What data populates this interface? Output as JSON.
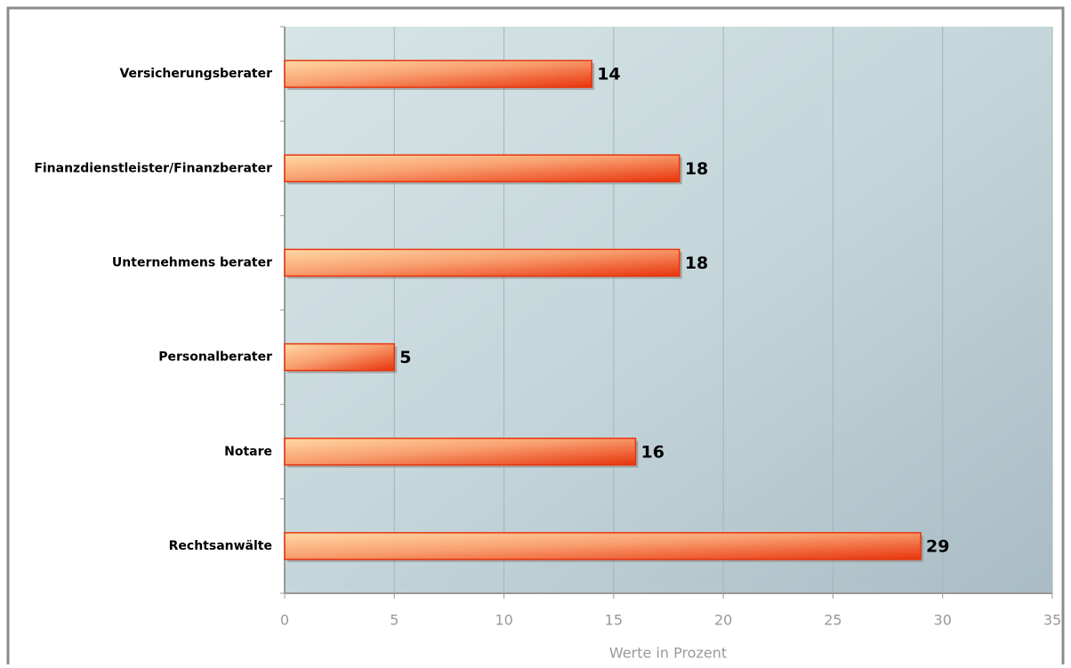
{
  "chart_data": {
    "type": "hbar",
    "categories": [
      "Versicherungsberater",
      "Finanzdienstleister/Finanzberater",
      "Unternehmens berater",
      "Personalberater",
      "Notare",
      "Rechtsanwälte"
    ],
    "values": [
      14,
      18,
      18,
      5,
      16,
      29
    ],
    "color": "#e8340c",
    "xlabel": "Werte in Prozent",
    "xlim": [
      0,
      35
    ],
    "xticks": [
      0,
      5,
      10,
      15,
      20,
      25,
      30,
      35
    ],
    "grid": true
  }
}
